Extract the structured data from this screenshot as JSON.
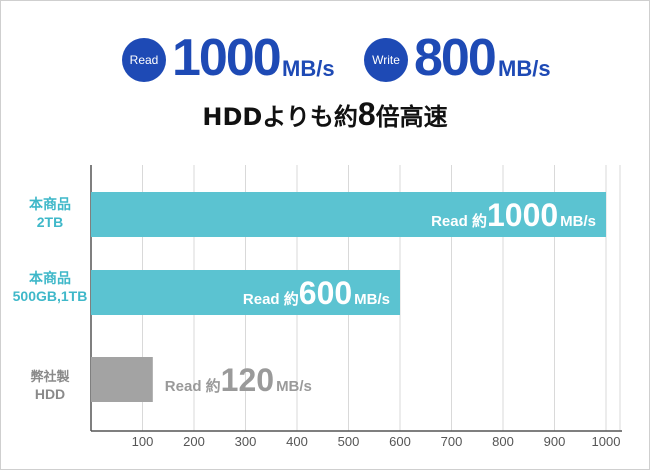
{
  "header": {
    "read_badge": "Read",
    "read_value": "1000",
    "read_unit": "MB/s",
    "write_badge": "Write",
    "write_value": "800",
    "write_unit": "MB/s",
    "subtitle_prefix": "HDDよりも約",
    "subtitle_multiplier": "8",
    "subtitle_suffix": "倍高速"
  },
  "colors": {
    "accent": "#1e4ab5",
    "bar_product": "#5bc3d1",
    "bar_hdd": "#a3a3a3",
    "label_product": "#3fb8c9",
    "label_hdd": "#8a8a8a"
  },
  "chart_data": {
    "type": "bar",
    "orientation": "horizontal",
    "categories": [
      {
        "line1": "本商品",
        "line2": "2TB"
      },
      {
        "line1": "本商品",
        "line2": "500GB,1TB"
      },
      {
        "line1": "弊社製",
        "line2": "HDD"
      }
    ],
    "series": [
      {
        "values": [
          1000,
          600,
          120
        ]
      }
    ],
    "data_labels": [
      {
        "prefix": "Read",
        "approx": "約",
        "value": "1000",
        "unit": "MB/s"
      },
      {
        "prefix": "Read",
        "approx": "約",
        "value": "600",
        "unit": "MB/s"
      },
      {
        "prefix": "Read",
        "approx": "約",
        "value": "120",
        "unit": "MB/s"
      }
    ],
    "xlim": [
      0,
      1000
    ],
    "xticks": [
      "100",
      "200",
      "300",
      "400",
      "500",
      "600",
      "700",
      "800",
      "900",
      "1000"
    ],
    "grid": true,
    "title": "",
    "xlabel": "",
    "ylabel": ""
  }
}
